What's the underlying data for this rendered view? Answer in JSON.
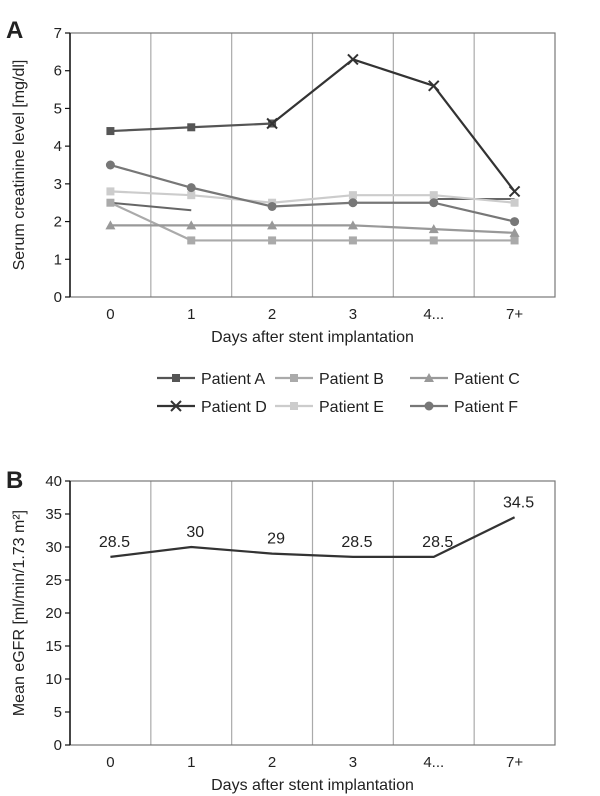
{
  "chart_data": [
    {
      "panel": "A",
      "type": "line",
      "categories": [
        "0",
        "1",
        "2",
        "3",
        "4...",
        "7+"
      ],
      "xlabel": "Days after stent implantation",
      "ylabel": "Serum creatinine level [mg/dl]",
      "ylim": [
        0,
        7
      ],
      "yticks": [
        "0",
        "1",
        "2",
        "3",
        "4",
        "5",
        "6",
        "7"
      ],
      "grid": "vertical",
      "legend_position": "bottom",
      "series": [
        {
          "name": "Patient A",
          "marker": "square",
          "color": "#555555",
          "values": [
            4.4,
            4.5,
            4.6,
            null,
            null,
            null
          ]
        },
        {
          "name": "Patient B",
          "marker": "square",
          "color": "#aaaaaa",
          "values": [
            2.5,
            1.5,
            1.5,
            1.5,
            1.5,
            1.5
          ]
        },
        {
          "name": "Patient C",
          "marker": "triangle",
          "color": "#999999",
          "values": [
            1.9,
            1.9,
            1.9,
            1.9,
            1.8,
            1.7
          ]
        },
        {
          "name": "Patient D",
          "marker": "x",
          "color": "#333333",
          "values": [
            null,
            null,
            4.6,
            6.3,
            5.6,
            2.8
          ]
        },
        {
          "name": "Patient E",
          "marker": "square",
          "color": "#cccccc",
          "values": [
            2.8,
            2.7,
            2.5,
            2.7,
            2.7,
            2.5
          ]
        },
        {
          "name": "Patient F",
          "marker": "circle",
          "color": "#777777",
          "values": [
            3.5,
            2.9,
            2.4,
            2.5,
            2.5,
            2.0
          ]
        }
      ],
      "extra_lines": [
        {
          "color": "#666666",
          "values": [
            2.5,
            2.3,
            null,
            null,
            2.6,
            2.6
          ]
        }
      ]
    },
    {
      "panel": "B",
      "type": "line",
      "categories": [
        "0",
        "1",
        "2",
        "3",
        "4...",
        "7+"
      ],
      "xlabel": "Days after stent implantation",
      "ylabel": "Mean eGFR [ml/min/1.73 m²]",
      "ylim": [
        0,
        40
      ],
      "yticks": [
        "0",
        "5",
        "10",
        "15",
        "20",
        "25",
        "30",
        "35",
        "40"
      ],
      "grid": "vertical",
      "series": [
        {
          "color": "#333333",
          "values": [
            28.5,
            30,
            29,
            28.5,
            28.5,
            34.5
          ],
          "data_labels": [
            "28.5",
            "30",
            "29",
            "28.5",
            "28.5",
            "34.5"
          ]
        }
      ]
    }
  ]
}
